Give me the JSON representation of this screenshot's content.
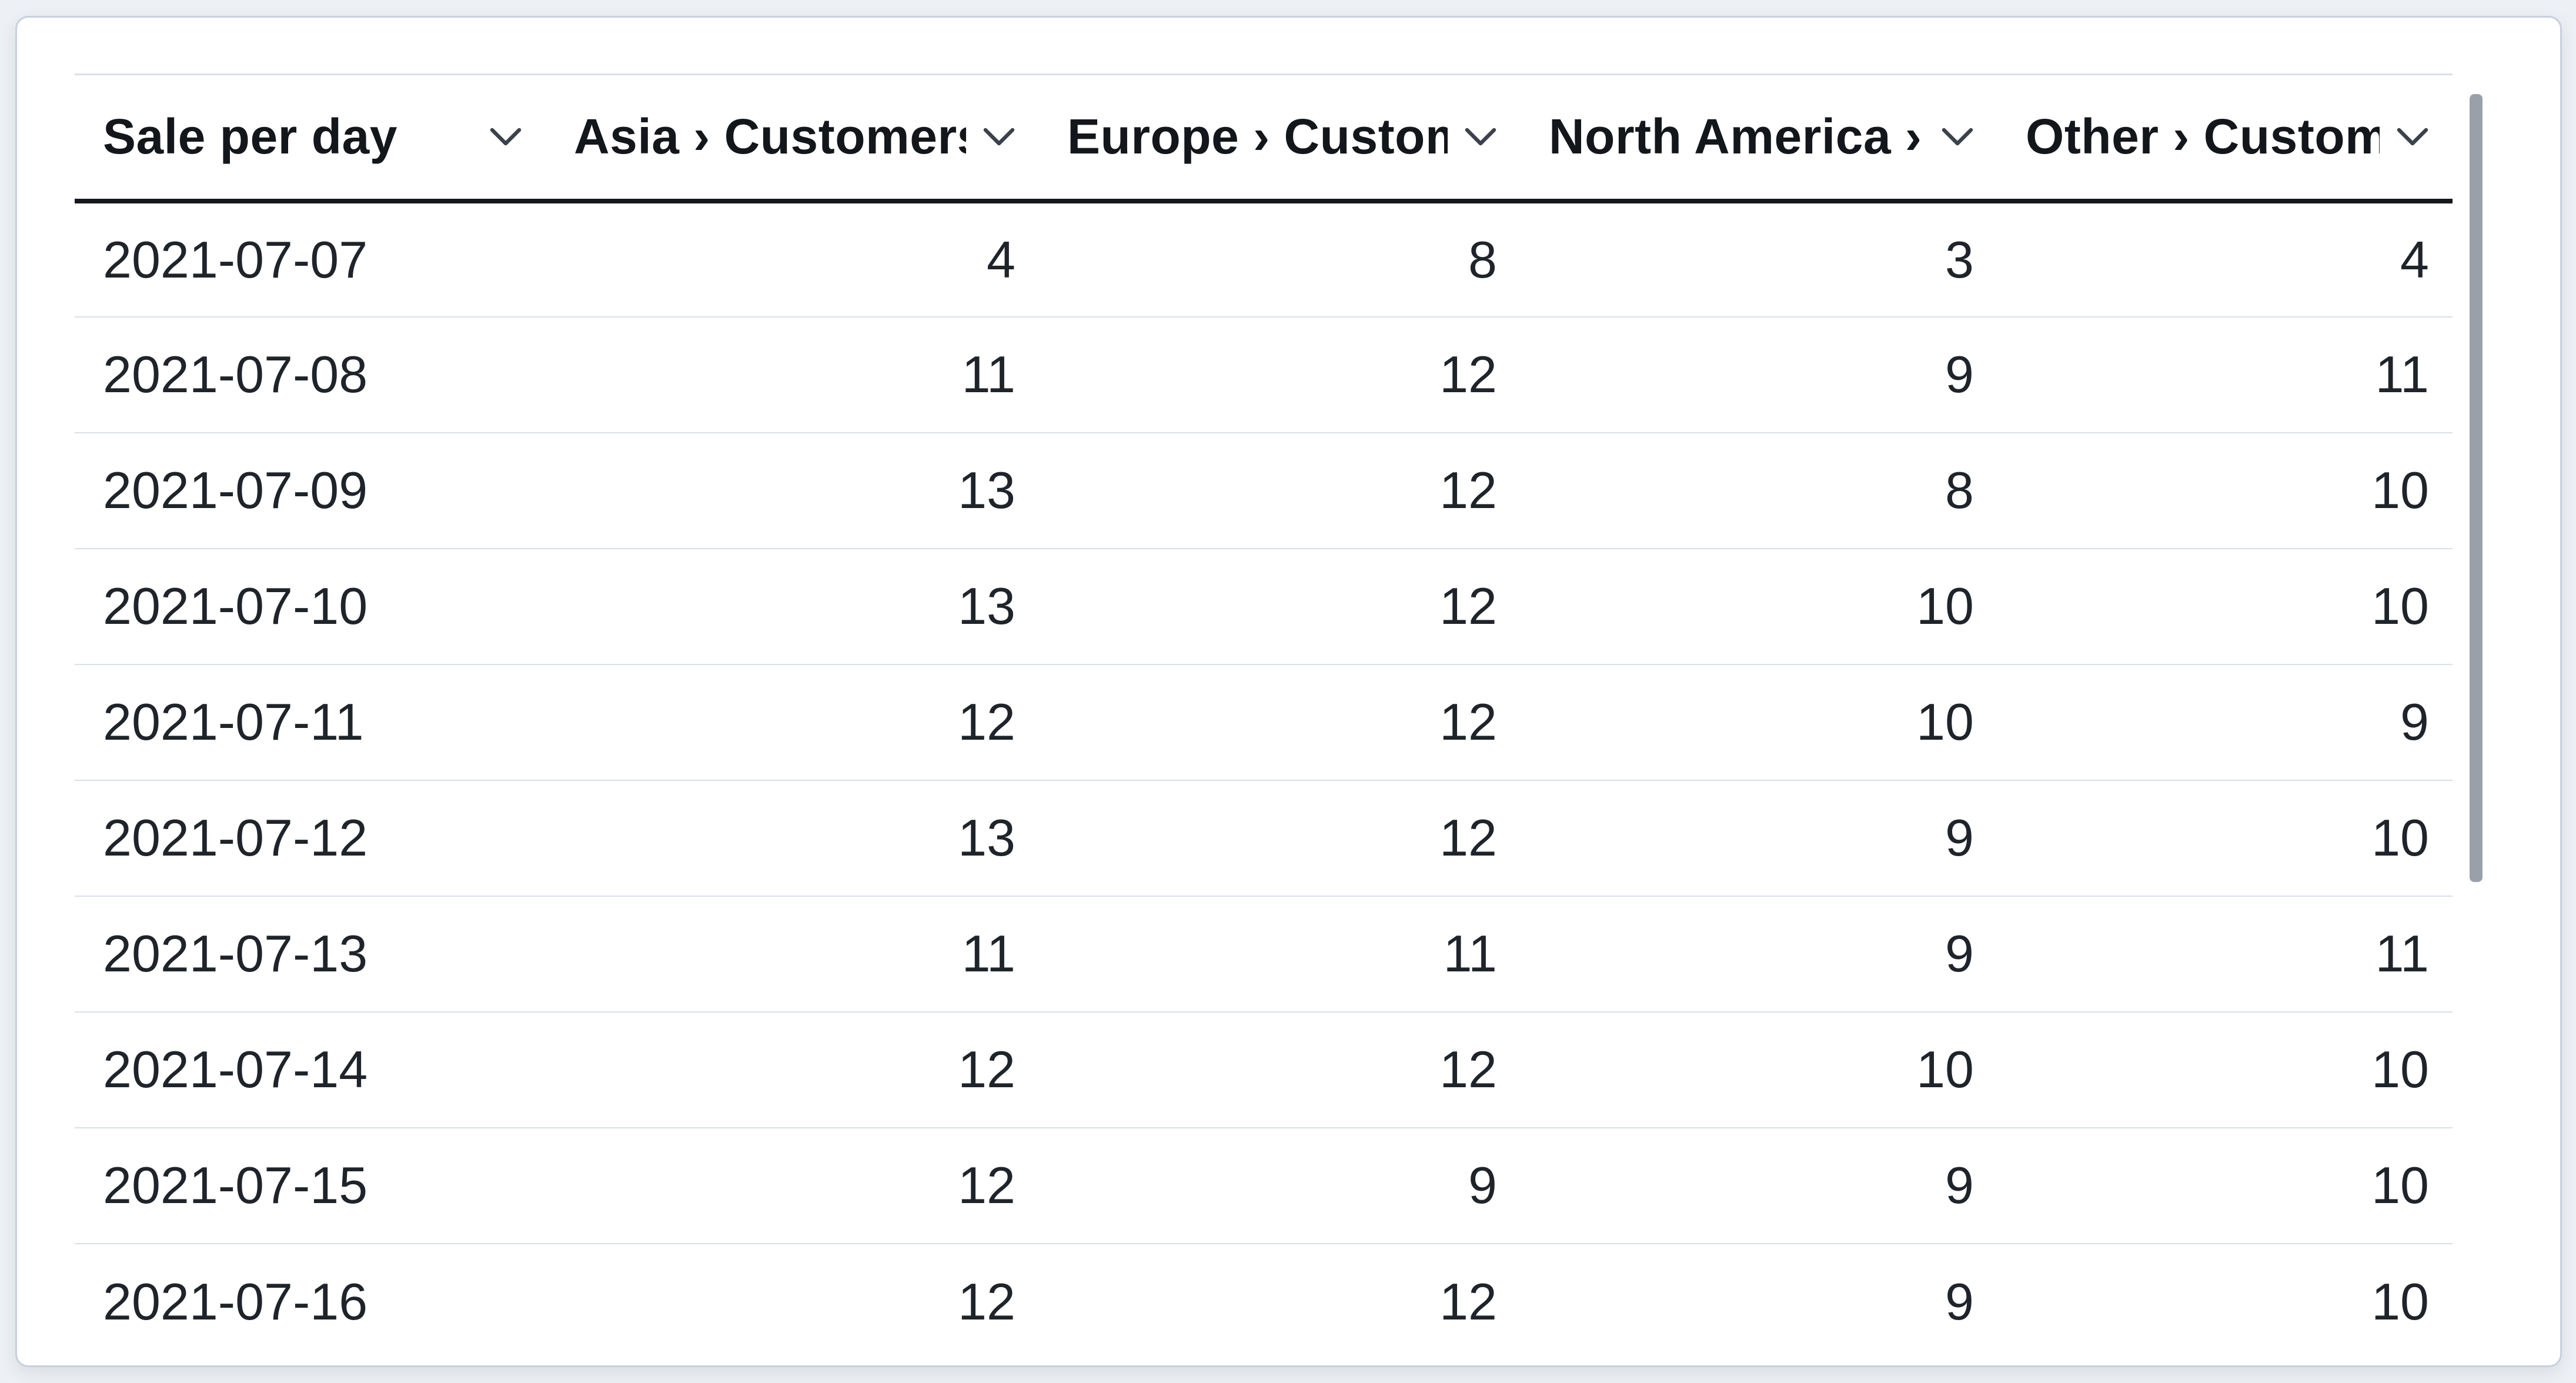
{
  "table": {
    "columns": [
      {
        "label": "Sale per day"
      },
      {
        "label": "Asia › Customers"
      },
      {
        "label": "Europe › Customers"
      },
      {
        "label": "North America › Customers"
      },
      {
        "label": "Other › Customers"
      }
    ],
    "rows": [
      {
        "date": "2021-07-07",
        "values": [
          4,
          8,
          3,
          4
        ]
      },
      {
        "date": "2021-07-08",
        "values": [
          11,
          12,
          9,
          11
        ]
      },
      {
        "date": "2021-07-09",
        "values": [
          13,
          12,
          8,
          10
        ]
      },
      {
        "date": "2021-07-10",
        "values": [
          13,
          12,
          10,
          10
        ]
      },
      {
        "date": "2021-07-11",
        "values": [
          12,
          12,
          10,
          9
        ]
      },
      {
        "date": "2021-07-12",
        "values": [
          13,
          12,
          9,
          10
        ]
      },
      {
        "date": "2021-07-13",
        "values": [
          11,
          11,
          9,
          11
        ]
      },
      {
        "date": "2021-07-14",
        "values": [
          12,
          12,
          10,
          10
        ]
      },
      {
        "date": "2021-07-15",
        "values": [
          12,
          9,
          9,
          10
        ]
      },
      {
        "date": "2021-07-16",
        "values": [
          12,
          12,
          9,
          10
        ]
      }
    ]
  },
  "icons": {
    "column_chevron": "chevron-down"
  },
  "colors": {
    "page_background": "#edf0f4",
    "card_background": "#ffffff",
    "card_border": "#c6d0df",
    "row_divider": "#d9dfe9",
    "header_border": "#16181d",
    "header_text": "#13161b",
    "body_text": "#1f242b",
    "scrollbar_thumb": "#99a0a9",
    "chevron": "#3c424c"
  }
}
